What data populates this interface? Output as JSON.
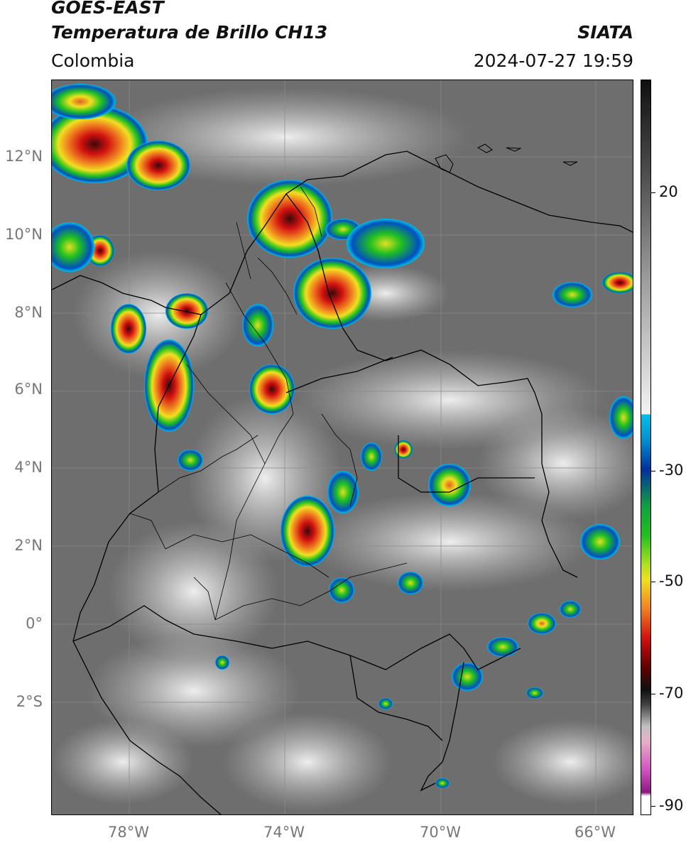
{
  "header": {
    "title_line1": "GOES-EAST",
    "title_line2": "Temperatura de Brillo CH13",
    "source": "SIATA",
    "region": "Colombia",
    "datetime": "2024-07-27 19:59"
  },
  "map": {
    "lat_labels": [
      "12°N",
      "10°N",
      "8°N",
      "6°N",
      "4°N",
      "2°N",
      "0°",
      "2°S"
    ],
    "lon_labels": [
      "78°W",
      "74°W",
      "70°W",
      "66°W"
    ]
  },
  "colorbar": {
    "tick_labels": [
      "20",
      "-30",
      "-50",
      "-70",
      "-90"
    ],
    "colors": {
      "warm_dark": "#4a4a4a",
      "warm_light": "#f0f0f0",
      "cyan": "#00c0e8",
      "blue": "#0030a0",
      "green": "#20c020",
      "yellow": "#f0e020",
      "orange": "#f08020",
      "red": "#d01010",
      "black": "#101010",
      "magenta": "#d050c0"
    }
  }
}
